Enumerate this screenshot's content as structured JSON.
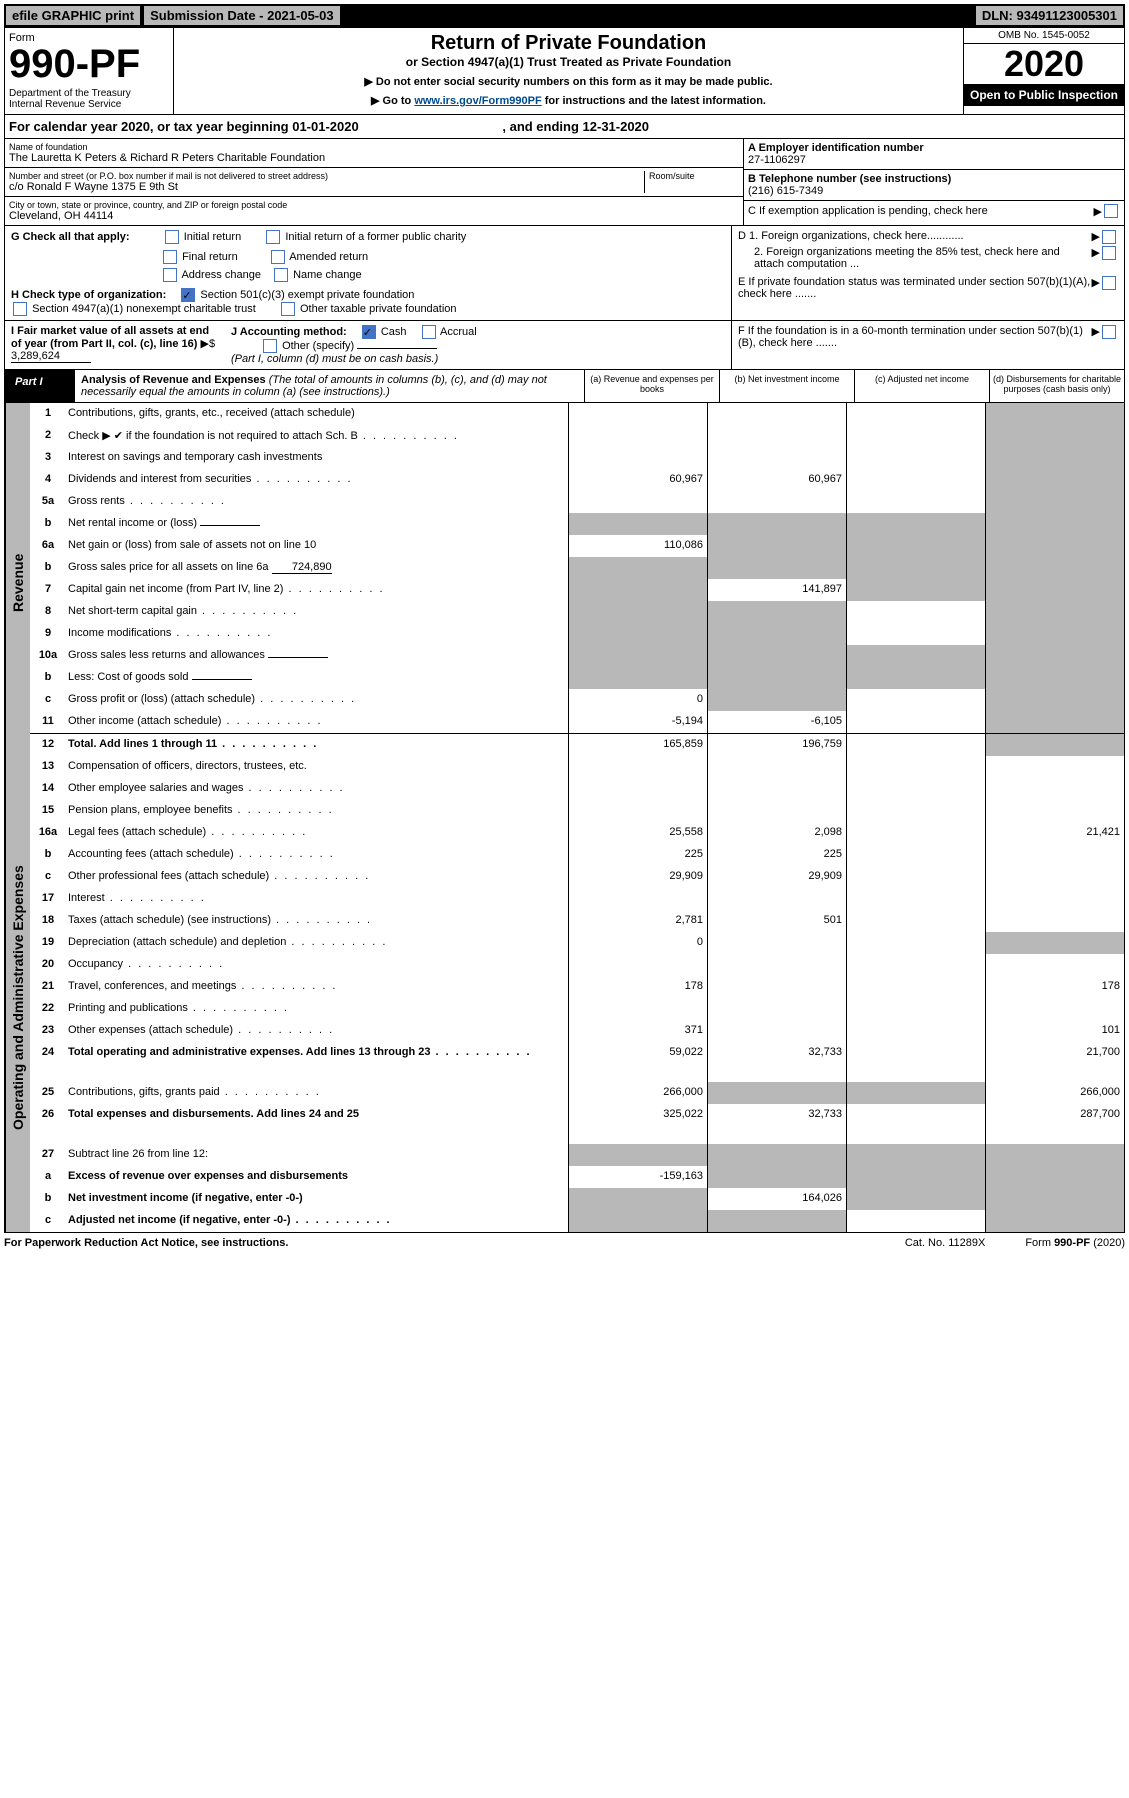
{
  "topbar": {
    "efile": "efile GRAPHIC print",
    "subdate_label": "Submission Date - 2021-05-03",
    "dln": "DLN: 93491123005301"
  },
  "header": {
    "form_label": "Form",
    "form_no": "990-PF",
    "dept": "Department of the Treasury\nInternal Revenue Service",
    "title": "Return of Private Foundation",
    "subtitle": "or Section 4947(a)(1) Trust Treated as Private Foundation",
    "inst1": "▶ Do not enter social security numbers on this form as it may be made public.",
    "inst2_pre": "▶ Go to ",
    "inst2_link": "www.irs.gov/Form990PF",
    "inst2_post": " for instructions and the latest information.",
    "omb": "OMB No. 1545-0052",
    "year": "2020",
    "open": "Open to Public Inspection"
  },
  "cal": {
    "text_pre": "For calendar year 2020, or tax year beginning 01-01-2020",
    "text_mid": ", and ending 12-31-2020"
  },
  "info": {
    "name_label": "Name of foundation",
    "name": "The Lauretta K Peters & Richard R Peters Charitable Foundation",
    "addr_label": "Number and street (or P.O. box number if mail is not delivered to street address)",
    "room_label": "Room/suite",
    "addr": "c/o Ronald F Wayne 1375 E 9th St",
    "city_label": "City or town, state or province, country, and ZIP or foreign postal code",
    "city": "Cleveland, OH  44114",
    "ein_label": "A Employer identification number",
    "ein": "27-1106297",
    "tel_label": "B Telephone number (see instructions)",
    "tel": "(216) 615-7349",
    "c_label": "C If exemption application is pending, check here",
    "d1": "D 1. Foreign organizations, check here............",
    "d2": "2. Foreign organizations meeting the 85% test, check here and attach computation ...",
    "e": "E  If private foundation status was terminated under section 507(b)(1)(A), check here .......",
    "f": "F  If the foundation is in a 60-month termination under section 507(b)(1)(B), check here ......."
  },
  "sectG": {
    "label": "G Check all that apply:",
    "opts": [
      "Initial return",
      "Final return",
      "Address change",
      "Initial return of a former public charity",
      "Amended return",
      "Name change"
    ]
  },
  "sectH": {
    "label": "H Check type of organization:",
    "opt1": "Section 501(c)(3) exempt private foundation",
    "opt2": "Section 4947(a)(1) nonexempt charitable trust",
    "opt3": "Other taxable private foundation"
  },
  "sectI": {
    "label": "I Fair market value of all assets at end of year (from Part II, col. (c), line 16)",
    "value": "3,289,624"
  },
  "sectJ": {
    "label": "J Accounting method:",
    "cash": "Cash",
    "accrual": "Accrual",
    "other": "Other (specify)",
    "note": "(Part I, column (d) must be on cash basis.)"
  },
  "part1": {
    "label": "Part I",
    "title": "Analysis of Revenue and Expenses",
    "desc": "(The total of amounts in columns (b), (c), and (d) may not necessarily equal the amounts in column (a) (see instructions).)",
    "cols": {
      "a": "(a)   Revenue and expenses per books",
      "b": "(b)   Net investment income",
      "c": "(c)   Adjusted net income",
      "d": "(d)   Disbursements for charitable purposes (cash basis only)"
    }
  },
  "rotated": {
    "rev": "Revenue",
    "exp": "Operating and Administrative Expenses"
  },
  "rows": [
    {
      "no": "1",
      "txt": "Contributions, gifts, grants, etc., received (attach schedule)",
      "a": "",
      "b": "",
      "c": "",
      "d": "",
      "dGray": true
    },
    {
      "no": "2",
      "txt": "Check ▶ ✔ if the foundation is not required to attach Sch. B",
      "a": "",
      "b": "",
      "c": "",
      "d": "",
      "dGray": true,
      "noCells": true,
      "dots": true
    },
    {
      "no": "3",
      "txt": "Interest on savings and temporary cash investments",
      "a": "",
      "b": "",
      "c": "",
      "d": "",
      "dGray": true
    },
    {
      "no": "4",
      "txt": "Dividends and interest from securities",
      "a": "60,967",
      "b": "60,967",
      "c": "",
      "d": "",
      "dGray": true,
      "dots": true
    },
    {
      "no": "5a",
      "txt": "Gross rents",
      "a": "",
      "b": "",
      "c": "",
      "d": "",
      "dGray": true,
      "dots": true
    },
    {
      "no": "b",
      "txt": "Net rental income or (loss)",
      "a": "",
      "b": "",
      "c": "",
      "d": "",
      "dGray": true,
      "aGray": true,
      "bGray": true,
      "cGray": true,
      "inline": true
    },
    {
      "no": "6a",
      "txt": "Net gain or (loss) from sale of assets not on line 10",
      "a": "110,086",
      "b": "",
      "c": "",
      "d": "",
      "bGray": true,
      "cGray": true,
      "dGray": true
    },
    {
      "no": "b",
      "txt": "Gross sales price for all assets on line 6a",
      "a": "",
      "b": "",
      "c": "",
      "d": "",
      "aGray": true,
      "bGray": true,
      "cGray": true,
      "dGray": true,
      "inline": true,
      "inlineVal": "724,890"
    },
    {
      "no": "7",
      "txt": "Capital gain net income (from Part IV, line 2)",
      "a": "",
      "b": "141,897",
      "c": "",
      "d": "",
      "aGray": true,
      "cGray": true,
      "dGray": true,
      "dots": true
    },
    {
      "no": "8",
      "txt": "Net short-term capital gain",
      "a": "",
      "b": "",
      "c": "",
      "d": "",
      "aGray": true,
      "bGray": true,
      "dGray": true,
      "dots": true
    },
    {
      "no": "9",
      "txt": "Income modifications",
      "a": "",
      "b": "",
      "c": "",
      "d": "",
      "aGray": true,
      "bGray": true,
      "dGray": true,
      "dots": true
    },
    {
      "no": "10a",
      "txt": "Gross sales less returns and allowances",
      "a": "",
      "b": "",
      "c": "",
      "d": "",
      "aGray": true,
      "bGray": true,
      "cGray": true,
      "dGray": true,
      "inline": true
    },
    {
      "no": "b",
      "txt": "Less: Cost of goods sold",
      "a": "",
      "b": "",
      "c": "",
      "d": "",
      "aGray": true,
      "bGray": true,
      "cGray": true,
      "dGray": true,
      "inline": true,
      "dots": true
    },
    {
      "no": "c",
      "txt": "Gross profit or (loss) (attach schedule)",
      "a": "0",
      "b": "",
      "c": "",
      "d": "",
      "bGray": true,
      "dGray": true,
      "dots": true
    },
    {
      "no": "11",
      "txt": "Other income (attach schedule)",
      "a": "-5,194",
      "b": "-6,105",
      "c": "",
      "d": "",
      "dGray": true,
      "dots": true
    },
    {
      "no": "12",
      "txt": "Total. Add lines 1 through 11",
      "a": "165,859",
      "b": "196,759",
      "c": "",
      "d": "",
      "dGray": true,
      "bold": true,
      "dots": true
    },
    {
      "no": "13",
      "txt": "Compensation of officers, directors, trustees, etc.",
      "a": "",
      "b": "",
      "c": "",
      "d": ""
    },
    {
      "no": "14",
      "txt": "Other employee salaries and wages",
      "a": "",
      "b": "",
      "c": "",
      "d": "",
      "dots": true
    },
    {
      "no": "15",
      "txt": "Pension plans, employee benefits",
      "a": "",
      "b": "",
      "c": "",
      "d": "",
      "dots": true
    },
    {
      "no": "16a",
      "txt": "Legal fees (attach schedule)",
      "a": "25,558",
      "b": "2,098",
      "c": "",
      "d": "21,421",
      "dots": true
    },
    {
      "no": "b",
      "txt": "Accounting fees (attach schedule)",
      "a": "225",
      "b": "225",
      "c": "",
      "d": "",
      "dots": true
    },
    {
      "no": "c",
      "txt": "Other professional fees (attach schedule)",
      "a": "29,909",
      "b": "29,909",
      "c": "",
      "d": "",
      "dots": true
    },
    {
      "no": "17",
      "txt": "Interest",
      "a": "",
      "b": "",
      "c": "",
      "d": "",
      "dots": true
    },
    {
      "no": "18",
      "txt": "Taxes (attach schedule) (see instructions)",
      "a": "2,781",
      "b": "501",
      "c": "",
      "d": "",
      "dots": true
    },
    {
      "no": "19",
      "txt": "Depreciation (attach schedule) and depletion",
      "a": "0",
      "b": "",
      "c": "",
      "d": "",
      "dGray": true,
      "dots": true
    },
    {
      "no": "20",
      "txt": "Occupancy",
      "a": "",
      "b": "",
      "c": "",
      "d": "",
      "dots": true
    },
    {
      "no": "21",
      "txt": "Travel, conferences, and meetings",
      "a": "178",
      "b": "",
      "c": "",
      "d": "178",
      "dots": true
    },
    {
      "no": "22",
      "txt": "Printing and publications",
      "a": "",
      "b": "",
      "c": "",
      "d": "",
      "dots": true
    },
    {
      "no": "23",
      "txt": "Other expenses (attach schedule)",
      "a": "371",
      "b": "",
      "c": "",
      "d": "101",
      "dots": true
    },
    {
      "no": "24",
      "txt": "Total operating and administrative expenses. Add lines 13 through 23",
      "a": "59,022",
      "b": "32,733",
      "c": "",
      "d": "21,700",
      "bold": true,
      "dots": true,
      "tall": true
    },
    {
      "no": "25",
      "txt": "Contributions, gifts, grants paid",
      "a": "266,000",
      "b": "",
      "c": "",
      "d": "266,000",
      "bGray": true,
      "cGray": true,
      "dots": true
    },
    {
      "no": "26",
      "txt": "Total expenses and disbursements. Add lines 24 and 25",
      "a": "325,022",
      "b": "32,733",
      "c": "",
      "d": "287,700",
      "bold": true,
      "tall": true
    },
    {
      "no": "27",
      "txt": "Subtract line 26 from line 12:",
      "a": "",
      "b": "",
      "c": "",
      "d": "",
      "aGray": true,
      "bGray": true,
      "cGray": true,
      "dGray": true
    },
    {
      "no": "a",
      "txt": "Excess of revenue over expenses and disbursements",
      "a": "-159,163",
      "b": "",
      "c": "",
      "d": "",
      "bGray": true,
      "cGray": true,
      "dGray": true,
      "bold": true
    },
    {
      "no": "b",
      "txt": "Net investment income (if negative, enter -0-)",
      "a": "",
      "b": "164,026",
      "c": "",
      "d": "",
      "aGray": true,
      "cGray": true,
      "dGray": true,
      "bold": true
    },
    {
      "no": "c",
      "txt": "Adjusted net income (if negative, enter -0-)",
      "a": "",
      "b": "",
      "c": "",
      "d": "",
      "aGray": true,
      "bGray": true,
      "dGray": true,
      "bold": true,
      "dots": true
    }
  ],
  "footer": {
    "left": "For Paperwork Reduction Act Notice, see instructions.",
    "mid": "Cat. No. 11289X",
    "right": "Form 990-PF (2020)"
  }
}
